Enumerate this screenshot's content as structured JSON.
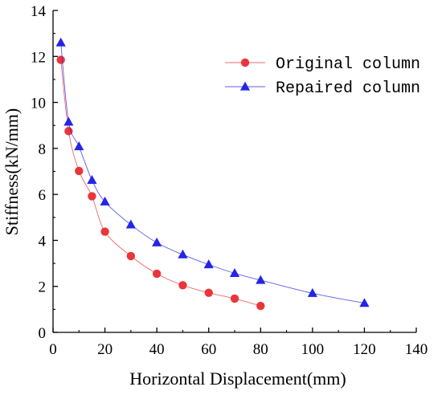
{
  "chart_data": {
    "type": "line",
    "title": "",
    "xlabel": "Horizontal Displacement(mm)",
    "ylabel": "Stiffness(kN/mm)",
    "xlim": [
      0,
      140
    ],
    "ylim": [
      0,
      14
    ],
    "x_ticks": [
      0,
      20,
      40,
      60,
      80,
      100,
      120,
      140
    ],
    "y_ticks": [
      0,
      2,
      4,
      6,
      8,
      10,
      12,
      14
    ],
    "grid": false,
    "legend_position": "top-right",
    "series": [
      {
        "name": "Original column",
        "color": "#e8363a",
        "marker": "circle",
        "x": [
          3,
          6,
          10,
          15,
          20,
          30,
          40,
          50,
          60,
          70,
          80
        ],
        "y": [
          11.85,
          8.75,
          7.02,
          5.92,
          4.38,
          3.32,
          2.55,
          2.05,
          1.72,
          1.47,
          1.15
        ]
      },
      {
        "name": "Repaired column",
        "color": "#2525e6",
        "marker": "triangle",
        "x": [
          3,
          6,
          10,
          15,
          20,
          30,
          40,
          50,
          60,
          70,
          80,
          100,
          120
        ],
        "y": [
          12.6,
          9.15,
          8.08,
          6.62,
          5.68,
          4.68,
          3.9,
          3.38,
          2.95,
          2.57,
          2.27,
          1.7,
          1.27
        ]
      }
    ]
  }
}
